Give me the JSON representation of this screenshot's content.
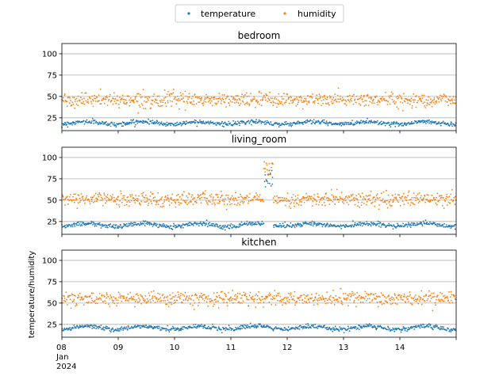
{
  "chart_data": {
    "type": "scatter",
    "legend": {
      "placement": "top-center",
      "entries": [
        {
          "name": "temperature",
          "color": "#1f77b4"
        },
        {
          "name": "humidity",
          "color": "#ff7f0e"
        }
      ]
    },
    "y_axis_label": "temperature/humidity",
    "x_ticks": [
      "08",
      "09",
      "10",
      "11",
      "12",
      "13",
      "14"
    ],
    "x_tick_sub": [
      "Jan",
      "2024"
    ],
    "x_range": [
      "2024-01-08",
      "2024-01-15"
    ],
    "panels": [
      {
        "title": "bedroom",
        "ylim": [
          10,
          112
        ],
        "yticks": [
          25,
          50,
          75,
          100
        ],
        "grid": "horizontal",
        "series": [
          {
            "name": "temperature",
            "color": "#1f77b4",
            "mean": 19,
            "daily_amplitude": 1.5,
            "noise": 1.3
          },
          {
            "name": "humidity",
            "color": "#ff7f0e",
            "mean": 46,
            "daily_amplitude": 0,
            "noise": 4
          }
        ]
      },
      {
        "title": "living_room",
        "ylim": [
          10,
          112
        ],
        "yticks": [
          25,
          50,
          75,
          100
        ],
        "grid": "horizontal",
        "series": [
          {
            "name": "temperature",
            "color": "#1f77b4",
            "mean": 21,
            "daily_amplitude": 1.8,
            "noise": 1.3
          },
          {
            "name": "humidity",
            "color": "#ff7f0e",
            "mean": 51,
            "daily_amplitude": 0,
            "noise": 4
          }
        ],
        "anomaly": {
          "start": "2024-01-11T14:00",
          "end": "2024-01-11T18:00",
          "temperature": [
            65,
            85
          ],
          "humidity": [
            78,
            95
          ]
        }
      },
      {
        "title": "kitchen",
        "ylim": [
          10,
          112
        ],
        "yticks": [
          25,
          50,
          75,
          100
        ],
        "grid": "horizontal",
        "series": [
          {
            "name": "temperature",
            "color": "#1f77b4",
            "mean": 21,
            "daily_amplitude": 2,
            "noise": 1.3
          },
          {
            "name": "humidity",
            "color": "#ff7f0e",
            "mean": 55,
            "daily_amplitude": 0,
            "noise": 4
          }
        ]
      }
    ]
  }
}
